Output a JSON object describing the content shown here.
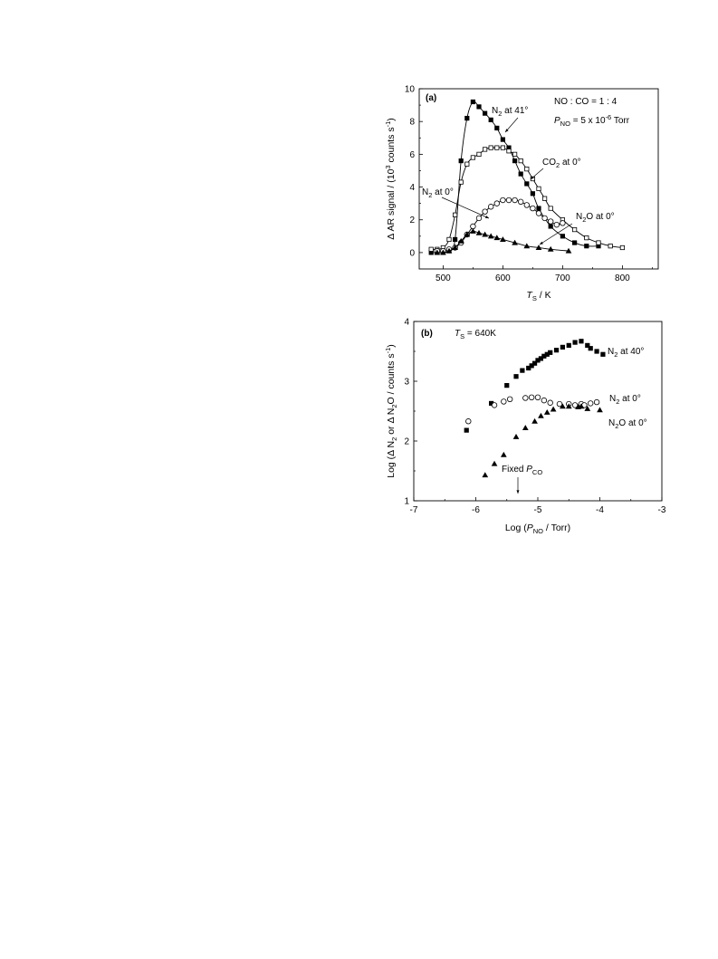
{
  "chart_data": [
    {
      "type": "scatter",
      "panel_label": "(a)",
      "xlabel": {
        "main": "T",
        "sub": "S",
        "rest": " / K"
      },
      "ylabel": {
        "pre": "Δ AR signal / (10",
        "sup": "3",
        "mid": " counts s",
        "sup2": "-1",
        "post": ")"
      },
      "xlim": [
        460,
        860
      ],
      "ylim": [
        -1,
        10
      ],
      "xticks": [
        500,
        600,
        700,
        800
      ],
      "yticks": [
        0,
        2,
        4,
        6,
        8,
        10
      ],
      "conditions": [
        {
          "parts": [
            "NO : CO = 1 : 4"
          ]
        },
        {
          "parts": [
            "P",
            "NO",
            " = 5 x 10",
            "-6",
            " Torr"
          ]
        }
      ],
      "series": [
        {
          "marker": "filled-square",
          "label": {
            "a": "N",
            "sub": "2",
            "b": " at 41°"
          },
          "x": [
            480,
            490,
            500,
            510,
            520,
            530,
            540,
            550,
            560,
            570,
            580,
            590,
            600,
            610,
            620,
            630,
            640,
            650,
            660,
            680,
            700,
            720,
            740,
            760
          ],
          "y": [
            0,
            0,
            0,
            0.1,
            0.8,
            5.6,
            8.2,
            9.2,
            8.9,
            8.5,
            8.1,
            7.6,
            6.9,
            6.4,
            5.6,
            4.8,
            4.2,
            3.6,
            2.7,
            1.6,
            1.0,
            0.6,
            0.4,
            0.4
          ]
        },
        {
          "marker": "open-square",
          "label": {
            "a": "CO",
            "sub": "2",
            "b": " at 0°"
          },
          "x": [
            480,
            490,
            500,
            510,
            520,
            530,
            540,
            550,
            560,
            570,
            580,
            590,
            600,
            610,
            620,
            630,
            640,
            650,
            660,
            670,
            680,
            700,
            720,
            740,
            760,
            780,
            800
          ],
          "y": [
            0.2,
            0.2,
            0.3,
            0.8,
            2.3,
            4.3,
            5.4,
            5.8,
            6.0,
            6.3,
            6.4,
            6.4,
            6.4,
            6.2,
            6.0,
            5.6,
            5.1,
            4.5,
            3.9,
            3.3,
            2.7,
            2.0,
            1.4,
            0.9,
            0.6,
            0.4,
            0.3
          ]
        },
        {
          "marker": "open-circle",
          "label": {
            "a": "N",
            "sub": "2",
            "b": " at 0°"
          },
          "x": [
            490,
            500,
            510,
            520,
            530,
            540,
            550,
            560,
            570,
            580,
            590,
            600,
            610,
            620,
            630,
            640,
            650,
            660,
            670,
            680,
            690,
            700
          ],
          "y": [
            0.1,
            0.1,
            0.2,
            0.3,
            0.6,
            1.1,
            1.6,
            2.1,
            2.5,
            2.8,
            3.0,
            3.2,
            3.2,
            3.2,
            3.1,
            2.9,
            2.7,
            2.4,
            2.1,
            1.9,
            1.7,
            1.8
          ]
        },
        {
          "marker": "filled-triangle",
          "label": {
            "a": "N",
            "sub": "2",
            "b": "O at 0°"
          },
          "x": [
            490,
            500,
            510,
            520,
            530,
            540,
            550,
            560,
            570,
            580,
            590,
            600,
            620,
            640,
            660,
            680,
            710
          ],
          "y": [
            0,
            0,
            0.1,
            0.3,
            0.7,
            1.1,
            1.3,
            1.2,
            1.1,
            1.0,
            0.9,
            0.8,
            0.6,
            0.4,
            0.3,
            0.2,
            0.1
          ]
        }
      ]
    },
    {
      "type": "scatter",
      "panel_label": "(b)",
      "xlabel": {
        "pre": "Log (",
        "p": "P",
        "sub": "NO",
        "post": " / Torr)"
      },
      "ylabel": {
        "pre": "Log (Δ N",
        "sub1": "2",
        "mid": " or Δ N",
        "sub2": "2",
        "mid2": "O / counts s",
        "sup": "-1",
        "post": ")"
      },
      "xlim": [
        -7,
        -3
      ],
      "ylim": [
        1,
        4
      ],
      "xticks": [
        -7,
        -6,
        -5,
        -4,
        -3
      ],
      "yticks": [
        1,
        2,
        3,
        4
      ],
      "condition": {
        "t": "T",
        "sub": "S",
        "rest": " = 640K"
      },
      "arrow_note": {
        "pre": "Fixed ",
        "p": "P",
        "sub": "CO"
      },
      "series": [
        {
          "marker": "filled-square",
          "label": {
            "a": "N",
            "sub": "2",
            "b": " at 40°"
          },
          "x": [
            -6.15,
            -5.75,
            -5.5,
            -5.35,
            -5.25,
            -5.15,
            -5.1,
            -5.05,
            -5.0,
            -4.95,
            -4.9,
            -4.85,
            -4.8,
            -4.7,
            -4.6,
            -4.5,
            -4.4,
            -4.3,
            -4.2,
            -4.15,
            -4.05,
            -3.95
          ],
          "y": [
            2.18,
            2.63,
            2.93,
            3.08,
            3.18,
            3.22,
            3.26,
            3.3,
            3.35,
            3.38,
            3.42,
            3.45,
            3.48,
            3.52,
            3.57,
            3.6,
            3.65,
            3.67,
            3.6,
            3.55,
            3.5,
            3.45
          ]
        },
        {
          "marker": "open-circle",
          "label": {
            "a": "N",
            "sub": "2",
            "b": " at 0°"
          },
          "x": [
            -6.12,
            -5.7,
            -5.55,
            -5.45,
            -5.2,
            -5.1,
            -5.0,
            -4.9,
            -4.8,
            -4.65,
            -4.5,
            -4.4,
            -4.3,
            -4.25,
            -4.15,
            -4.05
          ],
          "y": [
            2.33,
            2.6,
            2.66,
            2.7,
            2.72,
            2.73,
            2.73,
            2.68,
            2.64,
            2.62,
            2.62,
            2.6,
            2.62,
            2.6,
            2.63,
            2.65
          ]
        },
        {
          "marker": "filled-triangle",
          "label": {
            "a": "N",
            "sub": "2",
            "b": "O at 0°"
          },
          "x": [
            -5.85,
            -5.7,
            -5.55,
            -5.35,
            -5.2,
            -5.05,
            -4.95,
            -4.85,
            -4.75,
            -4.6,
            -4.5,
            -4.35,
            -4.3,
            -4.2,
            -4.0
          ],
          "y": [
            1.43,
            1.62,
            1.77,
            2.07,
            2.22,
            2.33,
            2.42,
            2.48,
            2.53,
            2.58,
            2.58,
            2.57,
            2.58,
            2.54,
            2.52
          ]
        }
      ]
    }
  ]
}
